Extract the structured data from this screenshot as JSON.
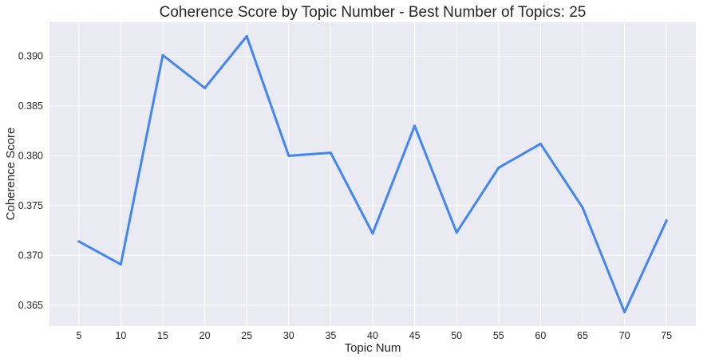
{
  "chart_data": {
    "type": "line",
    "title": "Coherence Score by Topic Number - Best Number of Topics: 25",
    "xlabel": "Topic Num",
    "ylabel": "Coherence Score",
    "x": [
      5,
      10,
      15,
      20,
      25,
      30,
      35,
      40,
      45,
      50,
      55,
      60,
      65,
      70,
      75
    ],
    "values": [
      0.3714,
      0.3691,
      0.3901,
      0.3868,
      0.392,
      0.38,
      0.3803,
      0.3722,
      0.383,
      0.3723,
      0.3788,
      0.3812,
      0.3748,
      0.3643,
      0.3735
    ],
    "x_ticks": [
      "5",
      "10",
      "15",
      "20",
      "25",
      "30",
      "35",
      "40",
      "45",
      "50",
      "55",
      "60",
      "65",
      "70",
      "75"
    ],
    "y_ticks": [
      "0.365",
      "0.370",
      "0.375",
      "0.380",
      "0.385",
      "0.390"
    ],
    "y_tick_values": [
      0.365,
      0.37,
      0.375,
      0.38,
      0.385,
      0.39
    ],
    "xlim": [
      1.5,
      78.5
    ],
    "ylim": [
      0.3629,
      0.3934
    ],
    "grid": true,
    "colors": {
      "line": "#4286f4",
      "background": "#eaeaf2",
      "grid": "#ffffff"
    }
  }
}
